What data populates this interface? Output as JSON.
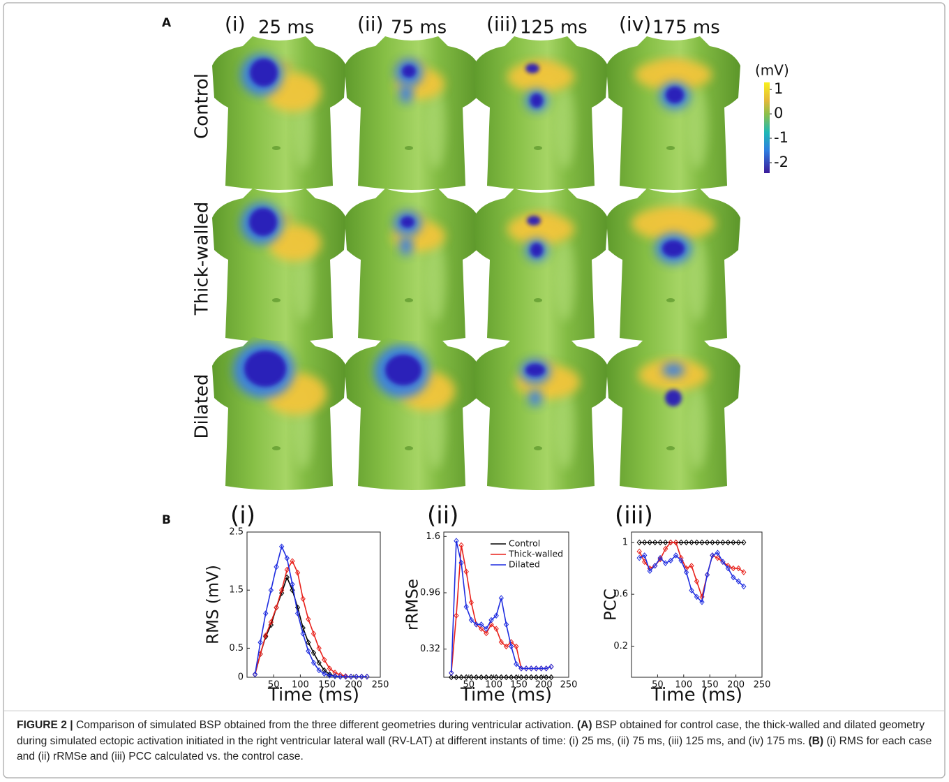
{
  "panel_a": {
    "label": "A",
    "columns": [
      {
        "index": "(i)",
        "time": "25 ms"
      },
      {
        "index": "(ii)",
        "time": "75 ms"
      },
      {
        "index": "(iii)",
        "time": "125 ms"
      },
      {
        "index": "(iv)",
        "time": "175 ms"
      }
    ],
    "rows": [
      "Control",
      "Thick-walled",
      "Dilated"
    ],
    "colorbar": {
      "label": "(mV)",
      "lim": [
        -2.43,
        1.29
      ],
      "ticks": [
        1,
        0,
        -1,
        -2
      ]
    }
  },
  "panel_b": {
    "label": "B"
  },
  "chart_data": [
    {
      "type": "line",
      "title": "(i)",
      "x_label": "Time (ms)",
      "y_label": "RMS (mV)",
      "x": [
        15,
        25,
        35,
        45,
        55,
        65,
        75,
        85,
        95,
        105,
        115,
        125,
        135,
        145,
        155,
        165,
        175,
        185,
        195,
        205,
        215,
        225
      ],
      "xlim": [
        0,
        250
      ],
      "xticks": [
        50,
        100,
        150,
        200,
        250
      ],
      "ylim": [
        0,
        2.5
      ],
      "yticks": [
        0,
        0.5,
        1.5,
        2.5
      ],
      "series": [
        {
          "color": "#000000",
          "values": [
            0.05,
            0.4,
            0.7,
            0.9,
            1.2,
            1.45,
            1.72,
            1.5,
            1.2,
            0.85,
            0.6,
            0.42,
            0.25,
            0.12,
            0.05,
            0.02,
            0.01,
            0.01,
            0.01,
            0.01,
            0.01,
            0.01
          ]
        },
        {
          "color": "#e8201a",
          "values": [
            0.05,
            0.4,
            0.72,
            0.95,
            1.2,
            1.5,
            1.85,
            2.0,
            1.8,
            1.35,
            1.0,
            0.75,
            0.5,
            0.3,
            0.15,
            0.08,
            0.04,
            0.02,
            0.01,
            0.01,
            0.01,
            0.01
          ]
        },
        {
          "color": "#1f2de0",
          "values": [
            0.05,
            0.6,
            1.1,
            1.5,
            1.9,
            2.25,
            2.05,
            1.6,
            1.1,
            0.75,
            0.45,
            0.25,
            0.12,
            0.06,
            0.03,
            0.02,
            0.01,
            0.01,
            0.01,
            0.01,
            0.01,
            0.01
          ]
        }
      ]
    },
    {
      "type": "line",
      "title": "(ii)",
      "x_label": "Time (ms)",
      "y_label": "rRMSe",
      "x": [
        15,
        25,
        35,
        45,
        55,
        65,
        75,
        85,
        95,
        105,
        115,
        125,
        135,
        145,
        155,
        165,
        175,
        185,
        195,
        205,
        215
      ],
      "xlim": [
        0,
        250
      ],
      "xticks": [
        50,
        100,
        150,
        200,
        250
      ],
      "ylim": [
        0,
        1.65
      ],
      "yticks": [
        0.32,
        0.96,
        1.6
      ],
      "legend": "upper right",
      "series": [
        {
          "name": "Control",
          "color": "#000000",
          "values": [
            0,
            0,
            0,
            0,
            0,
            0,
            0,
            0,
            0,
            0,
            0,
            0,
            0,
            0,
            0,
            0,
            0,
            0,
            0,
            0,
            0
          ]
        },
        {
          "name": "Thick-walled",
          "color": "#e8201a",
          "values": [
            0.05,
            0.7,
            1.5,
            1.2,
            0.85,
            0.6,
            0.55,
            0.5,
            0.6,
            0.55,
            0.4,
            0.35,
            0.4,
            0.35,
            0.1,
            0.1,
            0.1,
            0.1,
            0.1,
            0.1,
            0.12
          ]
        },
        {
          "name": "Dilated",
          "color": "#1f2de0",
          "values": [
            0.05,
            1.55,
            1.3,
            0.8,
            0.65,
            0.6,
            0.6,
            0.55,
            0.65,
            0.7,
            0.9,
            0.6,
            0.35,
            0.15,
            0.1,
            0.1,
            0.1,
            0.1,
            0.1,
            0.1,
            0.12
          ]
        }
      ]
    },
    {
      "type": "line",
      "title": "(iii)",
      "x_label": "Time (ms)",
      "y_label": "PCC",
      "x": [
        15,
        25,
        35,
        45,
        55,
        65,
        75,
        85,
        95,
        105,
        115,
        125,
        135,
        145,
        155,
        165,
        175,
        185,
        195,
        205,
        215
      ],
      "xlim": [
        0,
        250
      ],
      "xticks": [
        50,
        100,
        150,
        200,
        250
      ],
      "ylim": [
        -0.04,
        1.08
      ],
      "yticks": [
        0.2,
        0.6,
        1
      ],
      "series": [
        {
          "color": "#000000",
          "values": [
            1,
            1,
            1,
            1,
            1,
            1,
            1,
            1,
            1,
            1,
            1,
            1,
            1,
            1,
            1,
            1,
            1,
            1,
            1,
            1,
            1
          ]
        },
        {
          "color": "#e8201a",
          "values": [
            0.93,
            0.85,
            0.8,
            0.82,
            0.87,
            0.95,
            1.0,
            1.0,
            0.88,
            0.8,
            0.82,
            0.7,
            0.58,
            0.75,
            0.9,
            0.88,
            0.85,
            0.82,
            0.8,
            0.8,
            0.77
          ]
        },
        {
          "color": "#1f2de0",
          "values": [
            0.88,
            0.9,
            0.78,
            0.82,
            0.88,
            0.84,
            0.86,
            0.9,
            0.86,
            0.77,
            0.63,
            0.58,
            0.54,
            0.75,
            0.9,
            0.92,
            0.85,
            0.8,
            0.73,
            0.7,
            0.66
          ]
        }
      ]
    }
  ],
  "caption": {
    "lead": "FIGURE 2 |",
    "intro": " Comparison of simulated BSP obtained from the three different geometries during ventricular activation. ",
    "a_label": "(A)",
    "a_text": " BSP obtained for control case, the thick-walled and dilated geometry during simulated ectopic activation initiated in the right ventricular lateral wall (RV-LAT) at different instants of time: (i) 25 ms, (ii) 75 ms, (iii) 125 ms, and (iv) 175 ms. ",
    "b_label": "(B)",
    "b_text": " (i) RMS for each case and (ii) rRMSe and (iii) PCC calculated vs. the control case."
  }
}
